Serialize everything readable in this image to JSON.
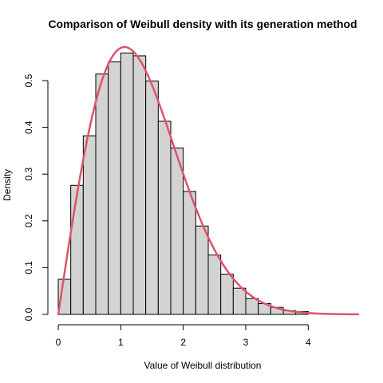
{
  "chart_data": {
    "type": "bar",
    "title": "Comparison of Weibull density with its generation method",
    "xlabel": "Value of Weibull distribution",
    "ylabel": "Density",
    "xlim": [
      0,
      4.8
    ],
    "ylim": [
      0,
      0.57
    ],
    "x_ticks": [
      0,
      1,
      2,
      3,
      4
    ],
    "y_ticks": [
      0.0,
      0.1,
      0.2,
      0.3,
      0.4,
      0.5
    ],
    "x_tick_labels": [
      "0",
      "1",
      "2",
      "3",
      "4"
    ],
    "y_tick_labels": [
      "0.0",
      "0.1",
      "0.2",
      "0.3",
      "0.4",
      "0.5"
    ],
    "histogram": {
      "bin_width": 0.2,
      "bin_edges": [
        0.0,
        0.2,
        0.4,
        0.6,
        0.8,
        1.0,
        1.2,
        1.4,
        1.6,
        1.8,
        2.0,
        2.2,
        2.4,
        2.6,
        2.8,
        3.0,
        3.2,
        3.4,
        3.6,
        3.8,
        4.0
      ],
      "values": [
        0.075,
        0.276,
        0.382,
        0.514,
        0.54,
        0.559,
        0.553,
        0.499,
        0.413,
        0.356,
        0.263,
        0.189,
        0.127,
        0.086,
        0.056,
        0.034,
        0.023,
        0.015,
        0.008,
        0.006
      ],
      "fill": "#d3d3d3",
      "stroke": "#000000"
    },
    "density_curve": {
      "distribution": "weibull",
      "shape": 2,
      "scale": 1.5,
      "x_range": [
        0,
        4.8
      ],
      "color": "#df536b"
    }
  }
}
